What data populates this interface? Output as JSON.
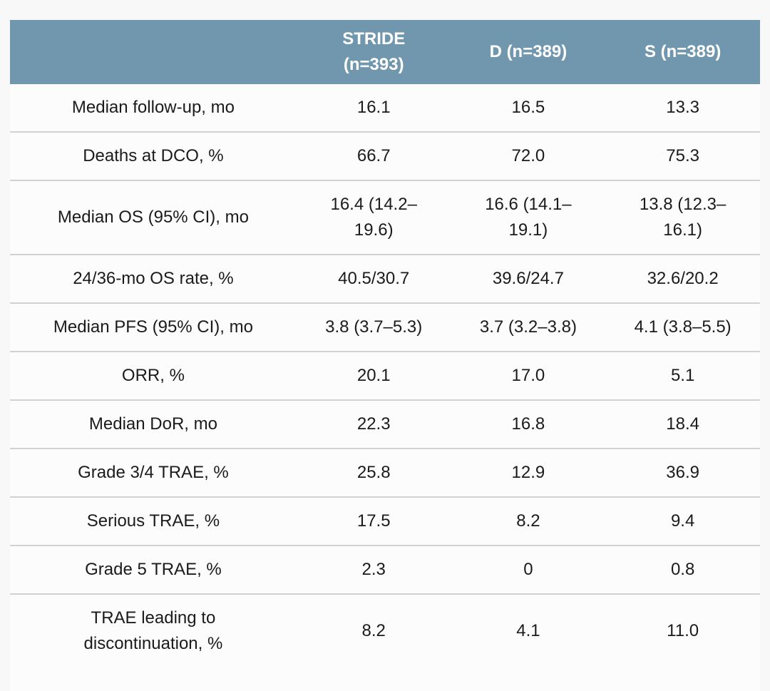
{
  "colors": {
    "page_background": "#f8f8f8",
    "header_background": "#7097ad",
    "header_text": "#ffffff",
    "row_background": "#fcfcfc",
    "row_divider": "#d2d2d2",
    "body_text": "#1b1b1b"
  },
  "chart_data": {
    "type": "table",
    "title": "",
    "columns": [
      "",
      "STRIDE\n(n=393)",
      "D (n=389)",
      "S (n=389)"
    ],
    "rows": [
      {
        "label": "Median follow-up, mo",
        "values": [
          "16.1",
          "16.5",
          "13.3"
        ]
      },
      {
        "label": "Deaths at DCO, %",
        "values": [
          "66.7",
          "72.0",
          "75.3"
        ]
      },
      {
        "label": "Median OS (95% CI), mo",
        "values": [
          "16.4 (14.2–\n19.6)",
          "16.6 (14.1–\n19.1)",
          "13.8 (12.3–\n16.1)"
        ]
      },
      {
        "label": "24/36-mo OS rate, %",
        "values": [
          "40.5/30.7",
          "39.6/24.7",
          "32.6/20.2"
        ]
      },
      {
        "label": "Median PFS (95% CI), mo",
        "values": [
          "3.8 (3.7–5.3)",
          "3.7 (3.2–3.8)",
          "4.1 (3.8–5.5)"
        ]
      },
      {
        "label": "ORR, %",
        "values": [
          "20.1",
          "17.0",
          "5.1"
        ]
      },
      {
        "label": "Median DoR, mo",
        "values": [
          "22.3",
          "16.8",
          "18.4"
        ]
      },
      {
        "label": "Grade 3/4 TRAE, %",
        "values": [
          "25.8",
          "12.9",
          "36.9"
        ]
      },
      {
        "label": "Serious TRAE, %",
        "values": [
          "17.5",
          "8.2",
          "9.4"
        ]
      },
      {
        "label": "Grade 5 TRAE, %",
        "values": [
          "2.3",
          "0",
          "0.8"
        ]
      },
      {
        "label": "TRAE leading to\ndiscontinuation, %",
        "values": [
          "8.2",
          "4.1",
          "11.0"
        ]
      }
    ]
  }
}
